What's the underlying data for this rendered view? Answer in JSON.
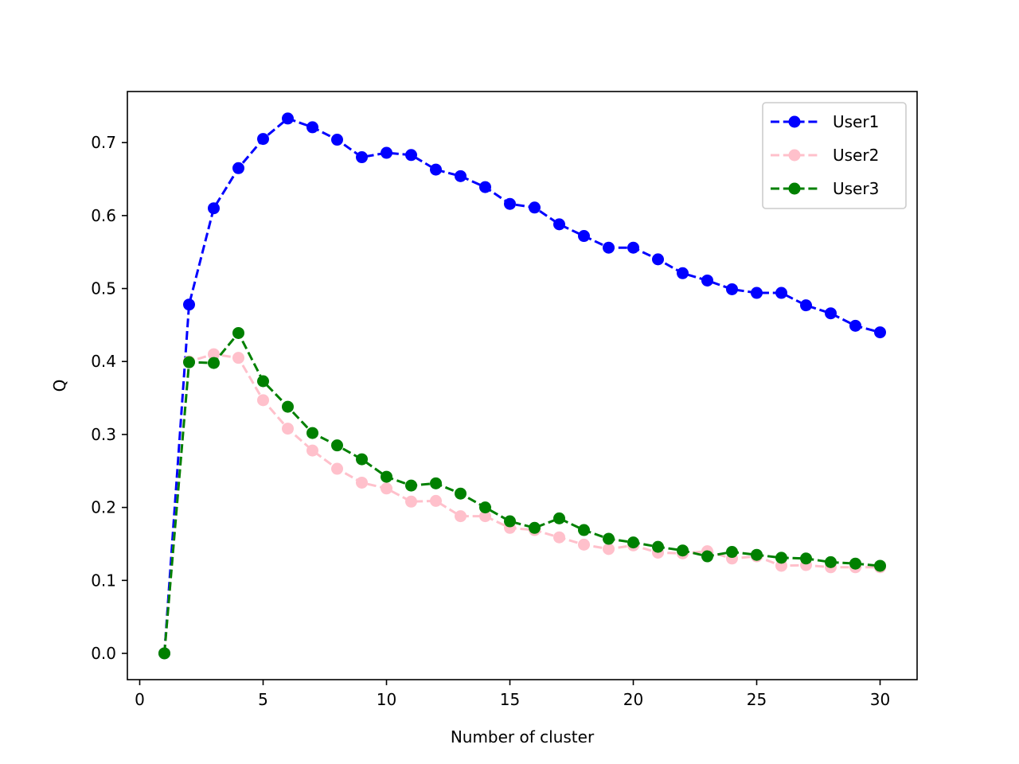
{
  "chart_data": {
    "type": "line",
    "title": "",
    "xlabel": "Number of cluster",
    "ylabel": "Q",
    "xlim": [
      -0.5,
      31.5
    ],
    "ylim": [
      -0.036,
      0.77
    ],
    "xticks": [
      0,
      5,
      10,
      15,
      20,
      25,
      30
    ],
    "yticks": [
      0.0,
      0.1,
      0.2,
      0.3,
      0.4,
      0.5,
      0.6,
      0.7
    ],
    "grid": false,
    "legend_position": "top-right",
    "x": [
      1,
      2,
      3,
      4,
      5,
      6,
      7,
      8,
      9,
      10,
      11,
      12,
      13,
      14,
      15,
      16,
      17,
      18,
      19,
      20,
      21,
      22,
      23,
      24,
      25,
      26,
      27,
      28,
      29,
      30
    ],
    "series": [
      {
        "name": "User1",
        "color": "#0000ff",
        "marker": "circle",
        "linestyle": "dashed",
        "values": [
          0.0,
          0.478,
          0.61,
          0.665,
          0.705,
          0.733,
          0.721,
          0.704,
          0.68,
          0.686,
          0.683,
          0.663,
          0.654,
          0.639,
          0.616,
          0.611,
          0.588,
          0.572,
          0.556,
          0.556,
          0.54,
          0.521,
          0.511,
          0.499,
          0.494,
          0.494,
          0.477,
          0.466,
          0.449,
          0.44
        ]
      },
      {
        "name": "User2",
        "color": "#ffc0cb",
        "marker": "circle",
        "linestyle": "dashed",
        "values": [
          0.0,
          0.4,
          0.41,
          0.405,
          0.347,
          0.308,
          0.278,
          0.253,
          0.234,
          0.226,
          0.208,
          0.209,
          0.188,
          0.188,
          0.172,
          0.169,
          0.159,
          0.149,
          0.143,
          0.148,
          0.138,
          0.137,
          0.14,
          0.13,
          0.133,
          0.12,
          0.121,
          0.118,
          0.118,
          0.118
        ]
      },
      {
        "name": "User3",
        "color": "#008000",
        "marker": "circle",
        "linestyle": "dashed",
        "values": [
          0.0,
          0.399,
          0.398,
          0.439,
          0.373,
          0.338,
          0.302,
          0.285,
          0.266,
          0.242,
          0.23,
          0.233,
          0.219,
          0.2,
          0.181,
          0.172,
          0.185,
          0.169,
          0.157,
          0.152,
          0.146,
          0.141,
          0.133,
          0.139,
          0.135,
          0.131,
          0.13,
          0.125,
          0.123,
          0.12
        ]
      }
    ]
  }
}
